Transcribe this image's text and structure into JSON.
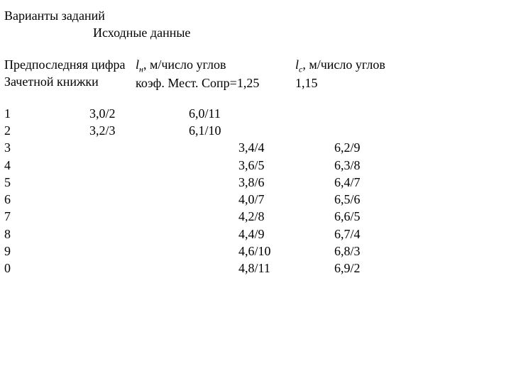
{
  "title": "Варианты заданий",
  "subtitle": "Исходные данные",
  "headers": {
    "col1_line1": "Предпоследняя цифра",
    "col1_line2": "Зачетной книжки",
    "col2_var": "l",
    "col2_sub": "н",
    "col2_rest": ", м/число углов",
    "col2_line2": "коэф. Мест. Сопр=1,25",
    "col3_var": "l",
    "col3_sub": "с",
    "col3_rest": ", м/число углов",
    "col3_line2": "1,15"
  },
  "rows": [
    {
      "digit": "1",
      "a": "3,0/2",
      "b": "6,0/11",
      "c": "",
      "d": ""
    },
    {
      "digit": "2",
      "a": "3,2/3",
      "b": "6,1/10",
      "c": "",
      "d": ""
    },
    {
      "digit": "3",
      "a": "",
      "b": "",
      "c": "3,4/4",
      "d": "6,2/9"
    },
    {
      "digit": "4",
      "a": "",
      "b": "",
      "c": "3,6/5",
      "d": "6,3/8"
    },
    {
      "digit": "5",
      "a": "",
      "b": "",
      "c": "3,8/6",
      "d": "6,4/7"
    },
    {
      "digit": "6",
      "a": "",
      "b": "",
      "c": "4,0/7",
      "d": "6,5/6"
    },
    {
      "digit": "7",
      "a": "",
      "b": "",
      "c": "4,2/8",
      "d": "6,6/5"
    },
    {
      "digit": "8",
      "a": "",
      "b": "",
      "c": "4,4/9",
      "d": "6,7/4"
    },
    {
      "digit": "9",
      "a": "",
      "b": "",
      "c": "4,6/10",
      "d": "6,8/3"
    },
    {
      "digit": "0",
      "a": "",
      "b": "",
      "c": "4,8/11",
      "d": "6,9/2"
    }
  ]
}
